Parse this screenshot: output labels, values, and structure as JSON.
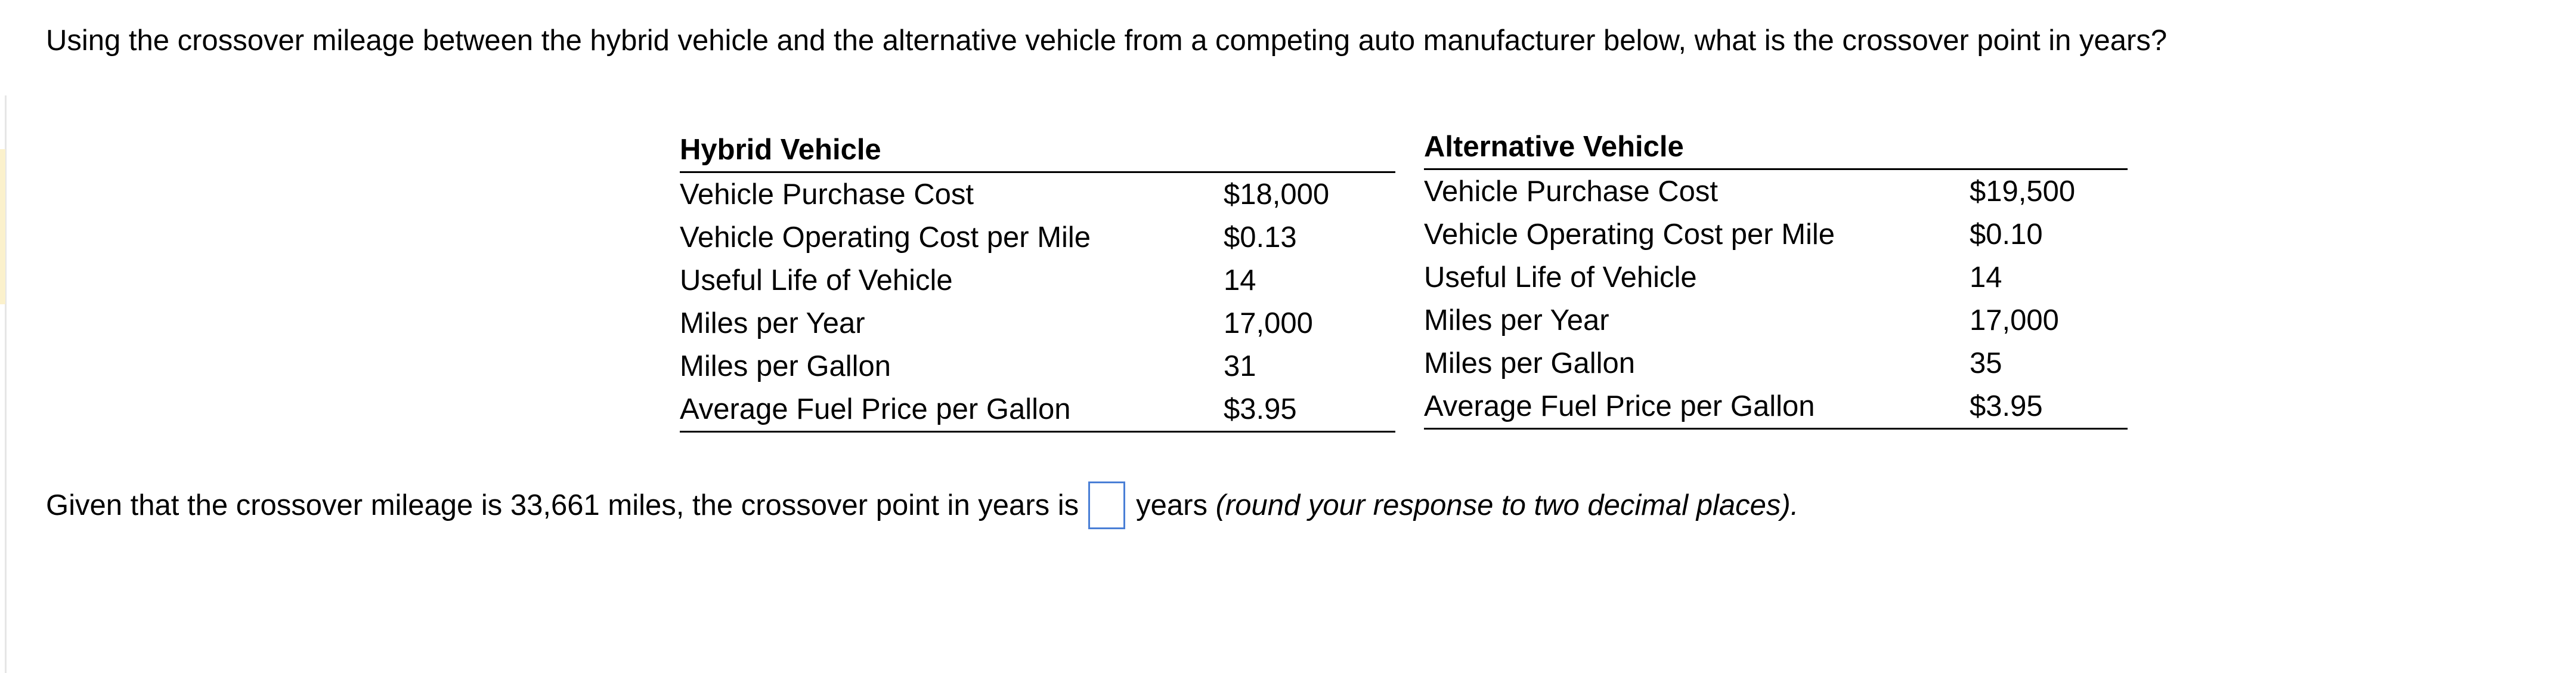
{
  "question": "Using the crossover mileage between the hybrid vehicle and the alternative vehicle from a competing auto manufacturer below, what is the crossover point in years?",
  "hybrid": {
    "title": "Hybrid Vehicle",
    "rows": [
      {
        "label": "Vehicle Purchase Cost",
        "value": "$18,000"
      },
      {
        "label": "Vehicle Operating Cost per Mile",
        "value": "$0.13"
      },
      {
        "label": "Useful Life of Vehicle",
        "value": "14"
      },
      {
        "label": "Miles per Year",
        "value": "17,000"
      },
      {
        "label": "Miles per Gallon",
        "value": "31"
      },
      {
        "label": "Average Fuel Price per Gallon",
        "value": "$3.95"
      }
    ]
  },
  "alternative": {
    "title": "Alternative Vehicle",
    "rows": [
      {
        "label": "Vehicle Purchase Cost",
        "value": "$19,500"
      },
      {
        "label": "Vehicle Operating Cost per Mile",
        "value": "$0.10"
      },
      {
        "label": "Useful Life of Vehicle",
        "value": "14"
      },
      {
        "label": "Miles per Year",
        "value": "17,000"
      },
      {
        "label": "Miles per Gallon",
        "value": "35"
      },
      {
        "label": "Average Fuel Price per Gallon",
        "value": "$3.95"
      }
    ]
  },
  "answer": {
    "prefix": "Given that the crossover mileage is 33,661 miles, the crossover point in years is",
    "value": "",
    "suffix": "years",
    "hint": "(round your response to two decimal places)."
  },
  "colors": {
    "input_border": "#4a7fd6",
    "left_highlight": "#fbf1cc"
  }
}
